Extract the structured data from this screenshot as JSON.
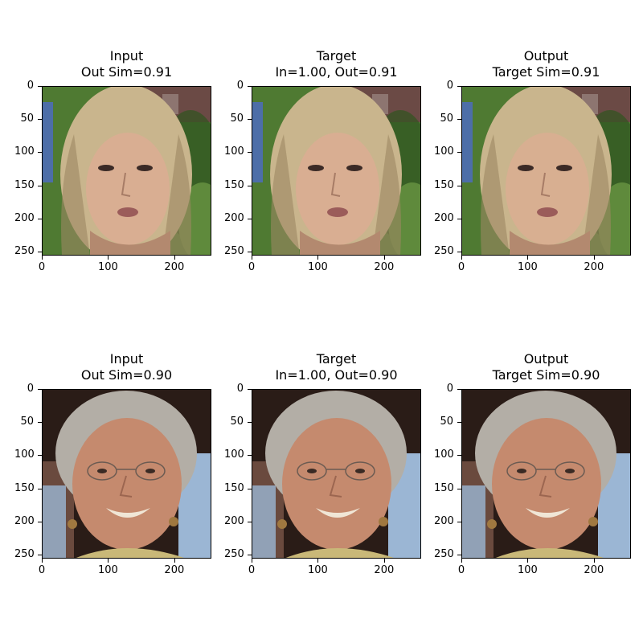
{
  "chart_data": [
    {
      "type": "image",
      "title_lines": [
        "Input",
        "Out Sim=0.91"
      ],
      "subject": "blonde-woman",
      "variant": "input",
      "xticks": [
        "0",
        "100",
        "200"
      ],
      "yticks": [
        "0",
        "50",
        "100",
        "150",
        "200",
        "250"
      ],
      "extent": [
        0,
        256
      ]
    },
    {
      "type": "image",
      "title_lines": [
        "Target",
        "In=1.00, Out=0.91"
      ],
      "subject": "blonde-woman",
      "variant": "target",
      "xticks": [
        "0",
        "100",
        "200"
      ],
      "yticks": [
        "0",
        "50",
        "100",
        "150",
        "200",
        "250"
      ],
      "extent": [
        0,
        256
      ]
    },
    {
      "type": "image",
      "title_lines": [
        "Output",
        "Target Sim=0.91"
      ],
      "subject": "blonde-woman",
      "variant": "output",
      "xticks": [
        "0",
        "100",
        "200"
      ],
      "yticks": [
        "0",
        "50",
        "100",
        "150",
        "200",
        "250"
      ],
      "extent": [
        0,
        256
      ]
    },
    {
      "type": "image",
      "title_lines": [
        "Input",
        "Out Sim=0.90"
      ],
      "subject": "elderly-woman-glasses",
      "variant": "input",
      "xticks": [
        "0",
        "100",
        "200"
      ],
      "yticks": [
        "0",
        "50",
        "100",
        "150",
        "200",
        "250"
      ],
      "extent": [
        0,
        256
      ]
    },
    {
      "type": "image",
      "title_lines": [
        "Target",
        "In=1.00, Out=0.90"
      ],
      "subject": "elderly-woman-glasses",
      "variant": "target",
      "xticks": [
        "0",
        "100",
        "200"
      ],
      "yticks": [
        "0",
        "50",
        "100",
        "150",
        "200",
        "250"
      ],
      "extent": [
        0,
        256
      ]
    },
    {
      "type": "image",
      "title_lines": [
        "Output",
        "Target Sim=0.90"
      ],
      "subject": "elderly-woman-glasses",
      "variant": "output",
      "xticks": [
        "0",
        "100",
        "200"
      ],
      "yticks": [
        "0",
        "50",
        "100",
        "150",
        "200",
        "250"
      ],
      "extent": [
        0,
        256
      ]
    }
  ],
  "colors": {
    "blonde_hair": "#c9b58d",
    "blonde_hair_dark": "#9c8762",
    "skin_light": "#d9ae92",
    "foliage": "#4f7a32",
    "foliage_dark": "#2f5420",
    "building": "#6b4a45",
    "grey_hair": "#b3aea6",
    "skin_warm": "#c58a6e",
    "dark_bg": "#2a1c17",
    "shirt_blue": "#9bb6d4",
    "shirt_yellow": "#c9b878"
  }
}
